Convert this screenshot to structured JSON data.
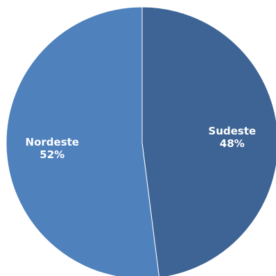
{
  "chart_data": {
    "type": "pie",
    "slices": [
      {
        "label": "Sudeste",
        "percent_label": "48%",
        "value": 48,
        "color": "#3d6494"
      },
      {
        "label": "Nordeste",
        "percent_label": "52%",
        "value": 52,
        "color": "#4f81bd"
      }
    ],
    "start_angle_deg": 0,
    "direction": "clockwise",
    "slice_border_color": "#ffffff",
    "legend": "none"
  }
}
